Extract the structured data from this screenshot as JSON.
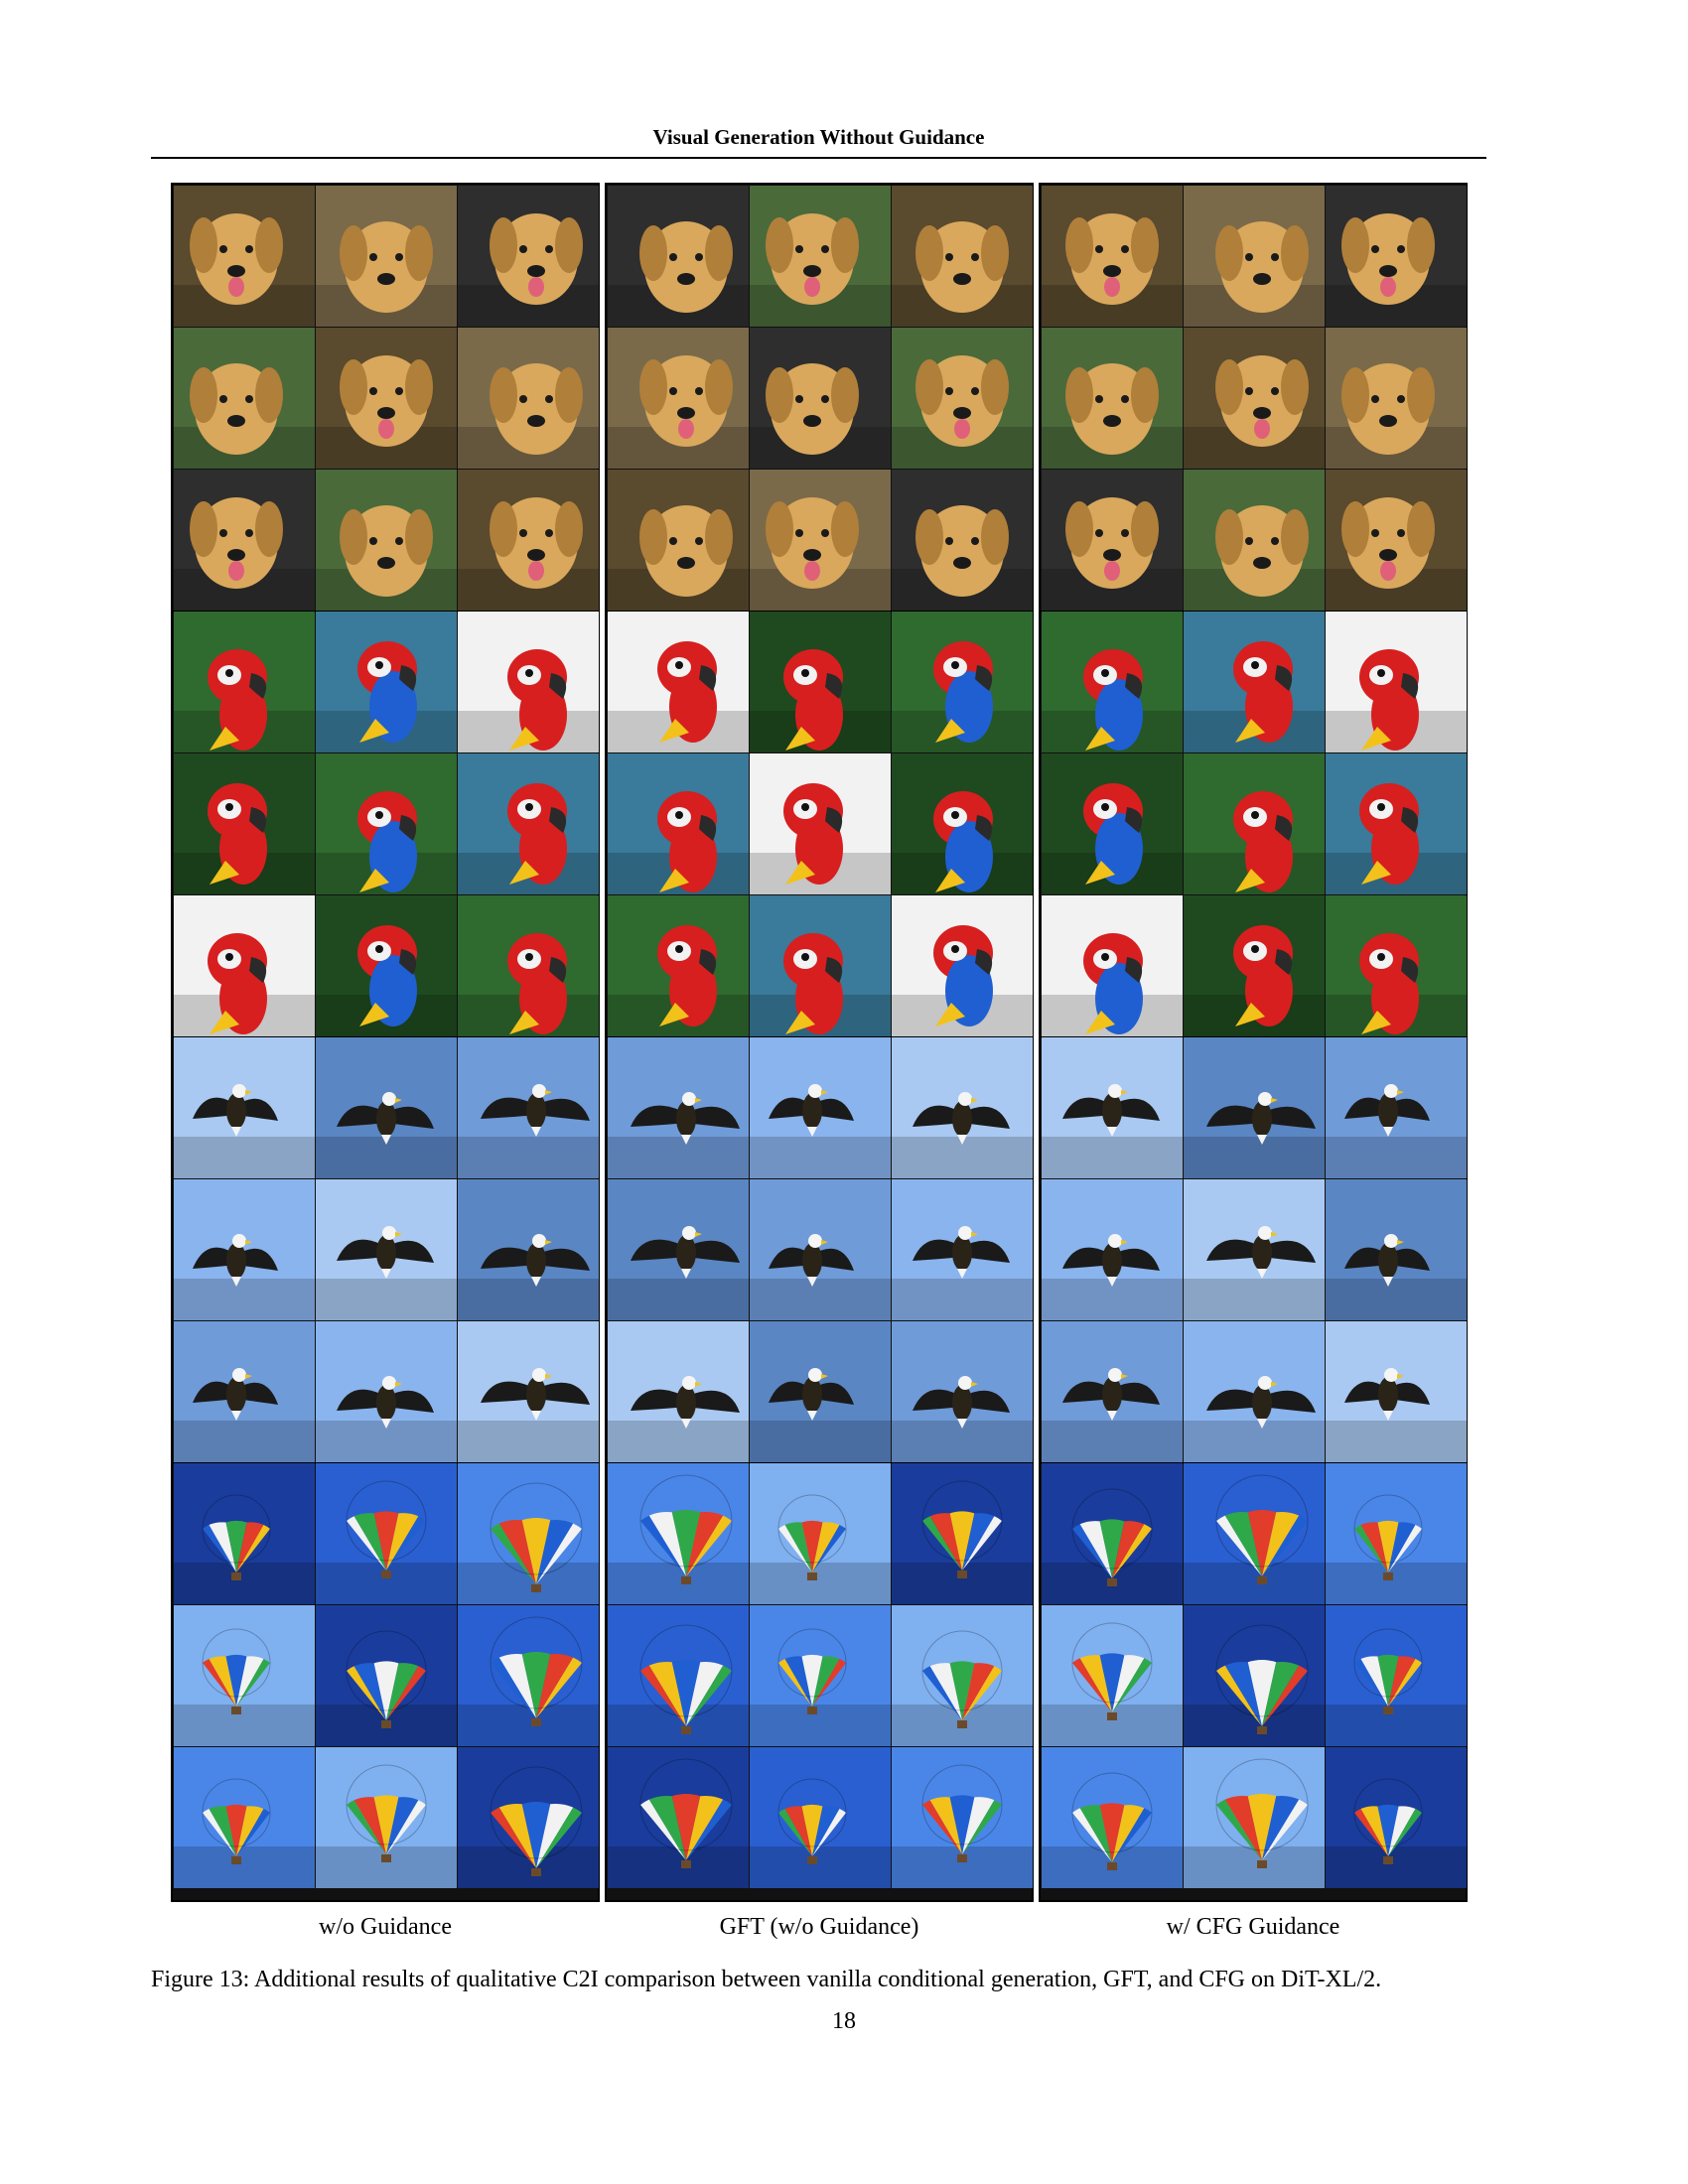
{
  "header": {
    "title": "Visual Generation Without Guidance"
  },
  "figure": {
    "columns": [
      {
        "label": "w/o Guidance",
        "key": "vanilla"
      },
      {
        "label": "GFT (w/o Guidance)",
        "key": "gft"
      },
      {
        "label": "w/ CFG Guidance",
        "key": "cfg"
      }
    ],
    "classes": [
      {
        "key": "golden-retriever",
        "icon": "dog-icon",
        "bg": [
          "#5a4a2e",
          "#7a6a4a",
          "#2e2e2e",
          "#4a6a3a"
        ],
        "subject": "#d9a85c"
      },
      {
        "key": "macaw",
        "icon": "parrot-icon",
        "bg": [
          "#1f4a1f",
          "#2f6a2f",
          "#3a7a9a",
          "#f2f2f2"
        ],
        "subject": "#d71f1f"
      },
      {
        "key": "bald-eagle",
        "icon": "eagle-icon",
        "bg": [
          "#6f9bd9",
          "#8ab4ee",
          "#a9c9f2",
          "#5a86c4"
        ],
        "subject": "#1a1a1a"
      },
      {
        "key": "hot-air-balloon",
        "icon": "balloon-icon",
        "bg": [
          "#2a5fd1",
          "#4a86e8",
          "#7fb0f0",
          "#1a3c9c"
        ],
        "subject": "#e23c2a"
      }
    ]
  },
  "labels": {
    "vanilla": "w/o Guidance",
    "gft": "GFT (w/o Guidance)",
    "cfg": "w/ CFG Guidance"
  },
  "caption": "Figure 13: Additional results of qualitative C2I comparison between vanilla conditional generation, GFT, and CFG on DiT-XL/2.",
  "page_number": "18"
}
